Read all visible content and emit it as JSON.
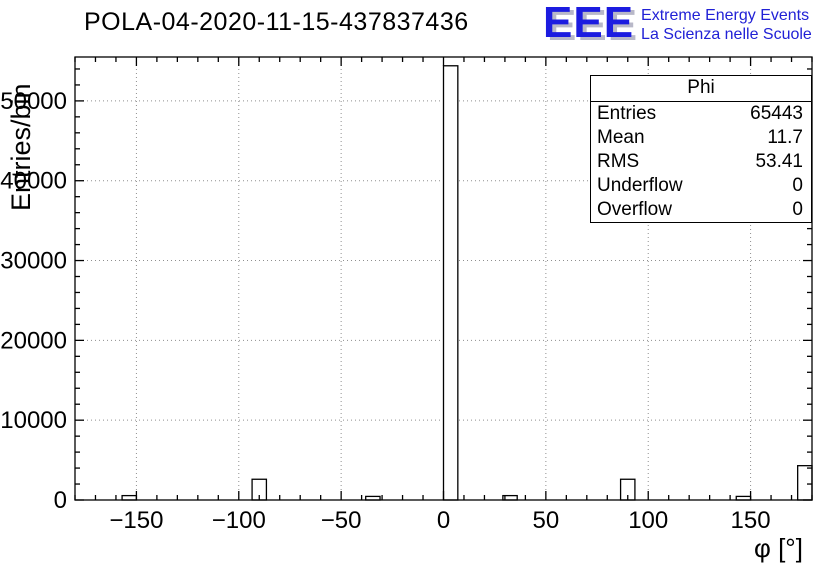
{
  "title": "POLA-04-2020-11-15-437837436",
  "logo": {
    "text": "EEE",
    "line1": "Extreme Energy Events",
    "line2": "La Scienza nelle Scuole"
  },
  "stats": {
    "header": "Phi",
    "rows": [
      [
        "Entries",
        "65443"
      ],
      [
        "Mean",
        "11.7"
      ],
      [
        "RMS",
        "53.41"
      ],
      [
        "Underflow",
        "0"
      ],
      [
        "Overflow",
        "0"
      ]
    ]
  },
  "colors": {
    "bar_stroke": "#000000",
    "bar_fill": "#ffffff",
    "grid": "#8f8f8f",
    "frame": "#000000",
    "logo_blue": "#1c1ce0"
  },
  "chart_data": {
    "type": "bar",
    "title": "POLA-04-2020-11-15-437837436",
    "xlabel": "φ [°]",
    "ylabel": "Entries/bin",
    "xlim": [
      -180,
      180
    ],
    "ylim": [
      0,
      55500
    ],
    "xticks": [
      -150,
      -100,
      -50,
      0,
      50,
      100,
      150
    ],
    "yticks": [
      0,
      10000,
      20000,
      30000,
      40000,
      50000
    ],
    "x_minor_step": 10,
    "y_minor_step": 2000,
    "grid": true,
    "legend_position": "top-right-stats-box",
    "bars": [
      {
        "x1": -157,
        "x2": -150,
        "y": 550
      },
      {
        "x1": -93.5,
        "x2": -86.5,
        "y": 2600
      },
      {
        "x1": -38,
        "x2": -31,
        "y": 450
      },
      {
        "x1": 0,
        "x2": 7,
        "y": 54400
      },
      {
        "x1": 29,
        "x2": 36,
        "y": 550
      },
      {
        "x1": 86.5,
        "x2": 93.5,
        "y": 2600
      },
      {
        "x1": 143,
        "x2": 150,
        "y": 450
      },
      {
        "x1": 173,
        "x2": 180,
        "y": 4300
      }
    ]
  }
}
